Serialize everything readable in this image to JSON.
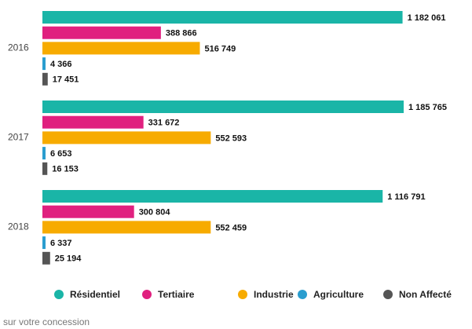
{
  "chart_data": {
    "type": "hbar",
    "categories": [
      "2016",
      "2017",
      "2018"
    ],
    "series": [
      {
        "name": "Résidentiel",
        "color": "#1ab5a7",
        "values": [
          1182061,
          1185765,
          1116791
        ],
        "value_labels": [
          "1 182 061",
          "1 185 765",
          "1 116 791"
        ]
      },
      {
        "name": "Tertiaire",
        "color": "#e0207f",
        "values": [
          388866,
          331672,
          300804
        ],
        "value_labels": [
          "388 866",
          "331 672",
          "300 804"
        ]
      },
      {
        "name": "Industrie",
        "color": "#f7ab00",
        "values": [
          516749,
          552593,
          552459
        ],
        "value_labels": [
          "516 749",
          "552 593",
          "552 459"
        ]
      },
      {
        "name": "Agriculture",
        "color": "#2a9dcf",
        "values": [
          4366,
          6653,
          6337
        ],
        "value_labels": [
          "4 366",
          "6 653",
          "6 337"
        ]
      },
      {
        "name": "Non Affecté",
        "color": "#555555",
        "values": [
          17451,
          16153,
          25194
        ],
        "value_labels": [
          "17 451",
          "16 153",
          "25 194"
        ]
      }
    ],
    "legend": "bottom",
    "footnote": "sur votre concession"
  }
}
